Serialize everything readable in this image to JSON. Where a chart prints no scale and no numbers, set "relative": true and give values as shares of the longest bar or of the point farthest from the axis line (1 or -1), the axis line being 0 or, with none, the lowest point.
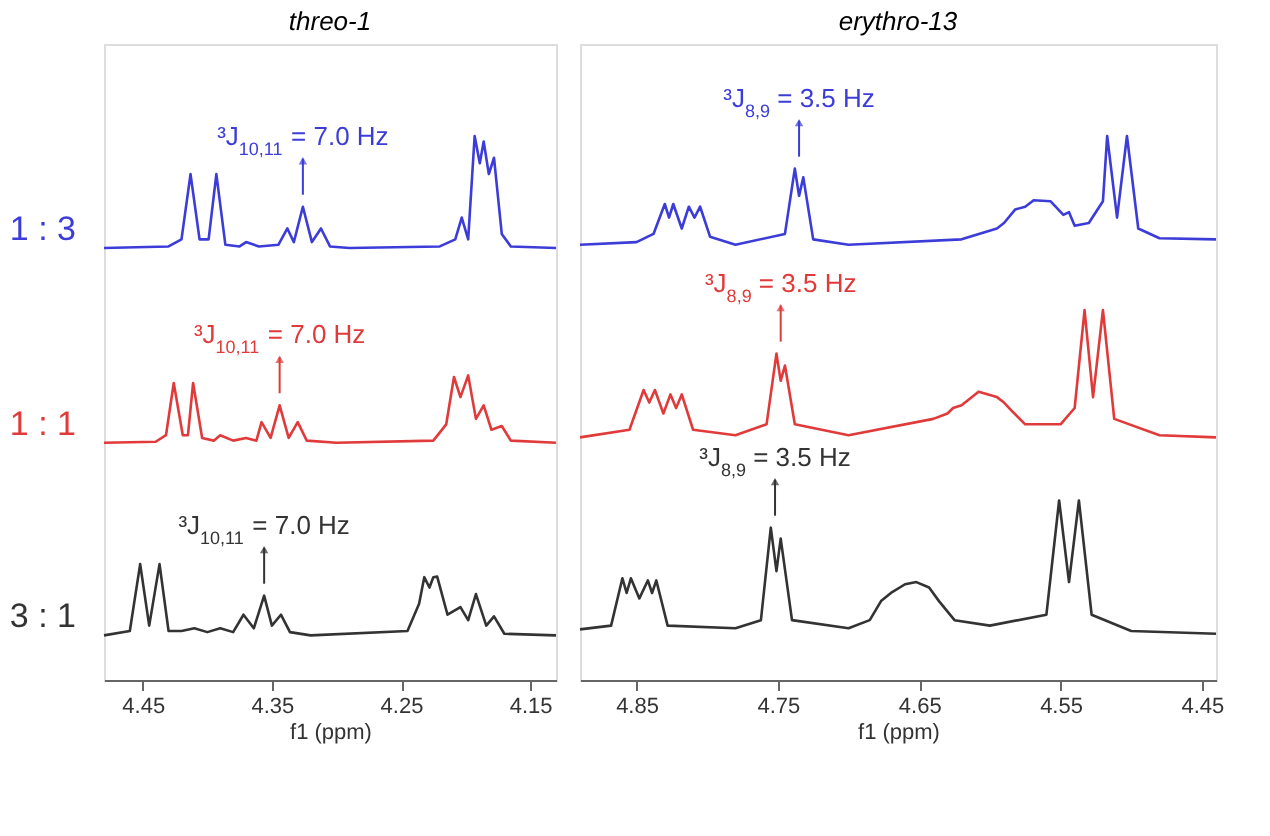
{
  "chart_data": [
    {
      "type": "line",
      "title": "threo-1",
      "xlabel": "f1 (ppm)",
      "relative": true,
      "xlim": [
        4.48,
        4.13
      ],
      "xticks": [
        4.45,
        4.35,
        4.25,
        4.15
      ],
      "grid": false,
      "legend": false,
      "line_style": "solid",
      "marker": "none",
      "x": [
        4.48,
        4.43,
        4.42,
        4.413,
        4.406,
        4.399,
        4.393,
        4.386,
        4.375,
        4.37,
        4.36,
        4.345,
        4.338,
        4.333,
        4.326,
        4.319,
        4.312,
        4.305,
        4.29,
        4.22,
        4.208,
        4.203,
        4.198,
        4.193,
        4.189,
        4.186,
        4.182,
        4.178,
        4.172,
        4.165,
        4.13
      ],
      "series": [
        {
          "name": "1 : 3",
          "color": "#3c3cd8",
          "values": [
            0.794,
            0.797,
            0.81,
            0.93,
            0.81,
            0.81,
            0.93,
            0.8,
            0.797,
            0.805,
            0.797,
            0.8,
            0.83,
            0.805,
            0.87,
            0.805,
            0.83,
            0.797,
            0.794,
            0.797,
            0.81,
            0.85,
            0.81,
            1.0,
            0.95,
            0.99,
            0.93,
            0.96,
            0.82,
            0.797,
            0.794
          ]
        },
        {
          "name": "1 : 1",
          "color": "#e03a3a",
          "x": [
            4.48,
            4.44,
            4.432,
            4.426,
            4.419,
            4.415,
            4.411,
            4.404,
            4.395,
            4.39,
            4.38,
            4.37,
            4.362,
            4.358,
            4.351,
            4.344,
            4.337,
            4.33,
            4.323,
            4.3,
            4.225,
            4.215,
            4.209,
            4.204,
            4.198,
            4.192,
            4.186,
            4.18,
            4.172,
            4.165,
            4.13
          ],
          "values": [
            0.436,
            0.438,
            0.45,
            0.546,
            0.45,
            0.45,
            0.546,
            0.445,
            0.44,
            0.45,
            0.44,
            0.445,
            0.44,
            0.474,
            0.445,
            0.505,
            0.445,
            0.474,
            0.44,
            0.436,
            0.44,
            0.47,
            0.557,
            0.52,
            0.56,
            0.48,
            0.505,
            0.46,
            0.467,
            0.44,
            0.436
          ]
        },
        {
          "name": "3 : 1",
          "color": "#333333",
          "x": [
            4.48,
            4.46,
            4.452,
            4.445,
            4.437,
            4.43,
            4.42,
            4.41,
            4.4,
            4.39,
            4.38,
            4.372,
            4.364,
            4.356,
            4.35,
            4.343,
            4.336,
            4.32,
            4.245,
            4.236,
            4.232,
            4.228,
            4.225,
            4.222,
            4.214,
            4.204,
            4.198,
            4.192,
            4.184,
            4.178,
            4.17,
            4.13
          ],
          "values": [
            0.082,
            0.09,
            0.213,
            0.1,
            0.213,
            0.09,
            0.09,
            0.095,
            0.088,
            0.095,
            0.088,
            0.12,
            0.095,
            0.155,
            0.1,
            0.12,
            0.088,
            0.082,
            0.09,
            0.14,
            0.189,
            0.17,
            0.189,
            0.19,
            0.12,
            0.134,
            0.11,
            0.158,
            0.1,
            0.117,
            0.085,
            0.082
          ]
        }
      ],
      "annotations": [
        {
          "text": "³J$_{10,11}$ = 7.0 Hz",
          "x": 4.326,
          "y": 0.87
        },
        {
          "text": "³J$_{10,11}$ = 7.0 Hz",
          "x": 4.344,
          "y": 0.505
        },
        {
          "text": "³J$_{10,11}$ = 7.0 Hz",
          "x": 4.356,
          "y": 0.155
        }
      ]
    },
    {
      "type": "line",
      "title": "erythro-13",
      "xlabel": "f1 (ppm)",
      "relative": true,
      "xlim": [
        4.89,
        4.44
      ],
      "xticks": [
        4.85,
        4.75,
        4.65,
        4.55,
        4.45
      ],
      "grid": false,
      "legend": false,
      "line_style": "solid",
      "marker": "none",
      "series": [
        {
          "color": "#3c3cd8",
          "x": [
            4.89,
            4.85,
            4.838,
            4.83,
            4.827,
            4.824,
            4.818,
            4.813,
            4.809,
            4.805,
            4.798,
            4.78,
            4.745,
            4.738,
            4.735,
            4.732,
            4.725,
            4.7,
            4.62,
            4.595,
            4.59,
            4.582,
            4.575,
            4.569,
            4.557,
            4.548,
            4.544,
            4.54,
            4.53,
            4.52,
            4.517,
            4.51,
            4.503,
            4.495,
            4.48,
            4.44
          ],
          "values": [
            0.8,
            0.805,
            0.82,
            0.875,
            0.85,
            0.875,
            0.83,
            0.87,
            0.85,
            0.87,
            0.815,
            0.8,
            0.82,
            0.94,
            0.89,
            0.924,
            0.81,
            0.8,
            0.81,
            0.83,
            0.84,
            0.865,
            0.87,
            0.882,
            0.88,
            0.855,
            0.86,
            0.835,
            0.84,
            0.88,
            1.0,
            0.85,
            1.0,
            0.83,
            0.812,
            0.81
          ]
        },
        {
          "color": "#e03a3a",
          "x": [
            4.89,
            4.855,
            4.845,
            4.841,
            4.837,
            4.831,
            4.826,
            4.822,
            4.818,
            4.81,
            4.78,
            4.758,
            4.751,
            4.748,
            4.745,
            4.738,
            4.7,
            4.64,
            4.63,
            4.626,
            4.62,
            4.608,
            4.595,
            4.59,
            4.585,
            4.575,
            4.55,
            4.54,
            4.533,
            4.527,
            4.52,
            4.512,
            4.48,
            4.44
          ],
          "values": [
            0.446,
            0.46,
            0.533,
            0.51,
            0.533,
            0.49,
            0.525,
            0.5,
            0.525,
            0.46,
            0.45,
            0.47,
            0.6,
            0.55,
            0.578,
            0.47,
            0.45,
            0.48,
            0.49,
            0.5,
            0.505,
            0.53,
            0.52,
            0.51,
            0.496,
            0.47,
            0.47,
            0.5,
            0.68,
            0.52,
            0.68,
            0.48,
            0.45,
            0.446
          ]
        },
        {
          "color": "#333333",
          "x": [
            4.89,
            4.868,
            4.86,
            4.857,
            4.854,
            4.848,
            4.842,
            4.839,
            4.836,
            4.828,
            4.78,
            4.762,
            4.755,
            4.751,
            4.748,
            4.74,
            4.7,
            4.685,
            4.677,
            4.67,
            4.66,
            4.652,
            4.643,
            4.636,
            4.625,
            4.6,
            4.56,
            4.551,
            4.544,
            4.537,
            4.528,
            4.5,
            4.44
          ],
          "values": [
            0.093,
            0.1,
            0.187,
            0.16,
            0.187,
            0.15,
            0.183,
            0.16,
            0.183,
            0.1,
            0.095,
            0.11,
            0.28,
            0.2,
            0.26,
            0.11,
            0.095,
            0.11,
            0.145,
            0.16,
            0.176,
            0.18,
            0.17,
            0.145,
            0.11,
            0.1,
            0.12,
            0.33,
            0.18,
            0.33,
            0.12,
            0.09,
            0.085
          ]
        }
      ],
      "annotations": [
        {
          "text": "³J$_{8,9}$ = 3.5 Hz",
          "x": 4.735,
          "y": 0.94
        },
        {
          "text": "³J$_{8,9}$ = 3.5 Hz",
          "x": 4.748,
          "y": 0.6
        },
        {
          "text": "³J$_{8,9}$ = 3.5 Hz",
          "x": 4.752,
          "y": 0.28
        }
      ]
    }
  ]
}
